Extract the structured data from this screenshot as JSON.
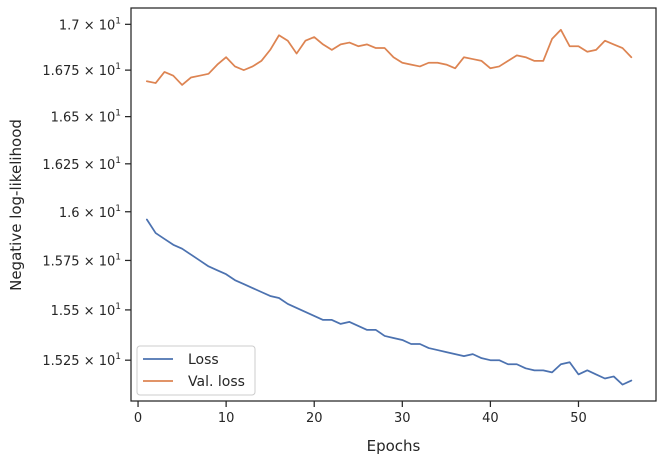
{
  "chart_data": {
    "type": "line",
    "xlabel": "Epochs",
    "ylabel": "Negative log-likelihood",
    "xlim": [
      -0.8,
      58.8
    ],
    "ylim": [
      15.05,
      17.09
    ],
    "yscale": "log",
    "grid": false,
    "legend_position": "lower-left",
    "x_ticks": [
      {
        "value": 0,
        "label": "0"
      },
      {
        "value": 10,
        "label": "10"
      },
      {
        "value": 20,
        "label": "20"
      },
      {
        "value": 30,
        "label": "30"
      },
      {
        "value": 40,
        "label": "40"
      },
      {
        "value": 50,
        "label": "50"
      }
    ],
    "y_ticks": [
      {
        "value": 15.25,
        "mantissa": "1.525",
        "base": "10",
        "exp": "1"
      },
      {
        "value": 15.5,
        "mantissa": "1.55",
        "base": "10",
        "exp": "1"
      },
      {
        "value": 15.75,
        "mantissa": "1.575",
        "base": "10",
        "exp": "1"
      },
      {
        "value": 16.0,
        "mantissa": "1.6",
        "base": "10",
        "exp": "1"
      },
      {
        "value": 16.25,
        "mantissa": "1.625",
        "base": "10",
        "exp": "1"
      },
      {
        "value": 16.5,
        "mantissa": "1.65",
        "base": "10",
        "exp": "1"
      },
      {
        "value": 16.75,
        "mantissa": "1.675",
        "base": "10",
        "exp": "1"
      },
      {
        "value": 17.0,
        "mantissa": "1.7",
        "base": "10",
        "exp": "1"
      }
    ],
    "x": [
      1,
      2,
      3,
      4,
      5,
      6,
      7,
      8,
      9,
      10,
      11,
      12,
      13,
      14,
      15,
      16,
      17,
      18,
      19,
      20,
      21,
      22,
      23,
      24,
      25,
      26,
      27,
      28,
      29,
      30,
      31,
      32,
      33,
      34,
      35,
      36,
      37,
      38,
      39,
      40,
      41,
      42,
      43,
      44,
      45,
      46,
      47,
      48,
      49,
      50,
      51,
      52,
      53,
      54,
      55,
      56
    ],
    "series": [
      {
        "name": "Loss",
        "color": "#4c72b0",
        "values": [
          15.96,
          15.89,
          15.86,
          15.83,
          15.81,
          15.78,
          15.75,
          15.72,
          15.7,
          15.68,
          15.65,
          15.63,
          15.61,
          15.59,
          15.57,
          15.56,
          15.53,
          15.51,
          15.49,
          15.47,
          15.45,
          15.45,
          15.43,
          15.44,
          15.42,
          15.4,
          15.4,
          15.37,
          15.36,
          15.35,
          15.33,
          15.33,
          15.31,
          15.3,
          15.29,
          15.28,
          15.27,
          15.28,
          15.26,
          15.25,
          15.25,
          15.23,
          15.23,
          15.21,
          15.2,
          15.2,
          15.19,
          15.23,
          15.24,
          15.18,
          15.2,
          15.18,
          15.16,
          15.17,
          15.13,
          15.15
        ]
      },
      {
        "name": "Val. loss",
        "color": "#dd8452",
        "values": [
          16.69,
          16.68,
          16.74,
          16.72,
          16.67,
          16.71,
          16.72,
          16.73,
          16.78,
          16.82,
          16.77,
          16.75,
          16.77,
          16.8,
          16.86,
          16.94,
          16.91,
          16.84,
          16.91,
          16.93,
          16.89,
          16.86,
          16.89,
          16.9,
          16.88,
          16.89,
          16.87,
          16.87,
          16.82,
          16.79,
          16.78,
          16.77,
          16.79,
          16.79,
          16.78,
          16.76,
          16.82,
          16.81,
          16.8,
          16.76,
          16.77,
          16.8,
          16.83,
          16.82,
          16.8,
          16.8,
          16.92,
          16.97,
          16.88,
          16.88,
          16.85,
          16.86,
          16.91,
          16.89,
          16.87,
          16.82
        ]
      }
    ]
  }
}
